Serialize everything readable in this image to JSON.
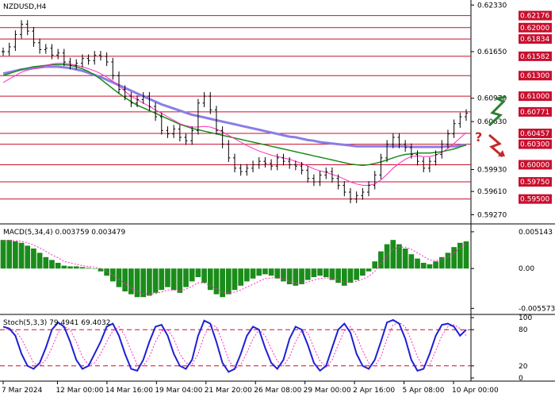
{
  "chart_data": [
    {
      "type": "line",
      "title": "NZDUSD,H4",
      "price_axis": {
        "ticks": [
          "0.62330",
          "0.61650",
          "0.60970",
          "0.60630",
          "0.59930",
          "0.59610",
          "0.59270"
        ],
        "ylim": [
          0.5916,
          0.6238
        ]
      },
      "levels": [
        {
          "label": "0.62176",
          "value": 0.62176
        },
        {
          "label": "0.62000",
          "value": 0.62
        },
        {
          "label": "0.61834",
          "value": 0.61834
        },
        {
          "label": "0.61582",
          "value": 0.61582
        },
        {
          "label": "0.61300",
          "value": 0.613
        },
        {
          "label": "0.61000",
          "value": 0.61
        },
        {
          "label": "0.60771",
          "value": 0.60771
        },
        {
          "label": "0.60457",
          "value": 0.60457
        },
        {
          "label": "0.60300",
          "value": 0.603
        },
        {
          "label": "0.60000",
          "value": 0.6
        },
        {
          "label": "0.59750",
          "value": 0.5975
        },
        {
          "label": "0.59500",
          "value": 0.595
        }
      ],
      "x_labels": [
        "7 Mar 2024",
        "12 Mar 00:00",
        "14 Mar 16:00",
        "19 Mar 04:00",
        "21 Mar 20:00",
        "26 Mar 08:00",
        "29 Mar 00:00",
        "2 Apr 16:00",
        "5 Apr 08:00",
        "10 Apr 00:00"
      ],
      "price_close": [
        0.6165,
        0.6172,
        0.619,
        0.6205,
        0.6195,
        0.6178,
        0.6168,
        0.617,
        0.616,
        0.6163,
        0.615,
        0.6145,
        0.6148,
        0.6155,
        0.6152,
        0.616,
        0.6158,
        0.615,
        0.613,
        0.611,
        0.61,
        0.609,
        0.6095,
        0.61,
        0.6085,
        0.607,
        0.605,
        0.6045,
        0.6052,
        0.604,
        0.6035,
        0.605,
        0.609,
        0.61,
        0.608,
        0.605,
        0.603,
        0.601,
        0.5995,
        0.599,
        0.5995,
        0.6,
        0.6005,
        0.6002,
        0.5998,
        0.601,
        0.6005,
        0.6,
        0.5998,
        0.5992,
        0.598,
        0.5975,
        0.5985,
        0.599,
        0.598,
        0.597,
        0.596,
        0.595,
        0.5955,
        0.596,
        0.597,
        0.5985,
        0.601,
        0.603,
        0.604,
        0.603,
        0.6025,
        0.6015,
        0.6005,
        0.5995,
        0.6005,
        0.6015,
        0.603,
        0.6045,
        0.606,
        0.607,
        0.6075
      ],
      "sma_fast": [
        0.612,
        0.6125,
        0.613,
        0.6135,
        0.6138,
        0.614,
        0.6142,
        0.6145,
        0.6147,
        0.6148,
        0.6148,
        0.6147,
        0.6145,
        0.6143,
        0.614,
        0.6137,
        0.6133,
        0.6128,
        0.6122,
        0.6115,
        0.6107,
        0.61,
        0.6095,
        0.609,
        0.6085,
        0.608,
        0.6075,
        0.607,
        0.6065,
        0.606,
        0.6057,
        0.6055,
        0.6055,
        0.6056,
        0.6055,
        0.6052,
        0.6048,
        0.6043,
        0.6038,
        0.6033,
        0.6028,
        0.6024,
        0.602,
        0.6017,
        0.6014,
        0.6012,
        0.601,
        0.6008,
        0.6005,
        0.6002,
        0.5998,
        0.5994,
        0.5991,
        0.5989,
        0.5986,
        0.5983,
        0.5979,
        0.5975,
        0.5972,
        0.597,
        0.597,
        0.5972,
        0.5978,
        0.5986,
        0.5995,
        0.6002,
        0.6008,
        0.6012,
        0.6013,
        0.6012,
        0.6012,
        0.6014,
        0.6018,
        0.6024,
        0.6031,
        0.6039,
        0.6047
      ],
      "sma_mid": [
        0.613,
        0.6133,
        0.6136,
        0.6139,
        0.6141,
        0.6143,
        0.6144,
        0.6145,
        0.6146,
        0.6146,
        0.6146,
        0.6145,
        0.6143,
        0.614,
        0.6136,
        0.6131,
        0.6125,
        0.6118,
        0.6111,
        0.6104,
        0.6098,
        0.6092,
        0.6087,
        0.6083,
        0.6079,
        0.6075,
        0.6071,
        0.6067,
        0.6063,
        0.6059,
        0.6056,
        0.6053,
        0.6051,
        0.6049,
        0.6047,
        0.6045,
        0.6043,
        0.6041,
        0.6039,
        0.6037,
        0.6035,
        0.6033,
        0.6031,
        0.6029,
        0.6027,
        0.6025,
        0.6023,
        0.6021,
        0.6019,
        0.6017,
        0.6015,
        0.6013,
        0.6011,
        0.6009,
        0.6007,
        0.6005,
        0.6003,
        0.6001,
        0.6,
        0.5999,
        0.6,
        0.6002,
        0.6004,
        0.6007,
        0.601,
        0.6013,
        0.6015,
        0.6016,
        0.6017,
        0.6017,
        0.6017,
        0.6018,
        0.6019,
        0.6021,
        0.6023,
        0.6026,
        0.6029
      ],
      "sma_slow": [
        0.6133,
        0.6135,
        0.6137,
        0.6139,
        0.614,
        0.6141,
        0.6142,
        0.6143,
        0.6143,
        0.6143,
        0.6142,
        0.6141,
        0.6139,
        0.6137,
        0.6134,
        0.6131,
        0.6128,
        0.6124,
        0.612,
        0.6116,
        0.6112,
        0.6108,
        0.6104,
        0.61,
        0.6096,
        0.6092,
        0.6088,
        0.6085,
        0.6082,
        0.6079,
        0.6076,
        0.6073,
        0.6071,
        0.6069,
        0.6067,
        0.6065,
        0.6063,
        0.6061,
        0.6059,
        0.6057,
        0.6055,
        0.6053,
        0.6051,
        0.6049,
        0.6047,
        0.6045,
        0.6043,
        0.6041,
        0.604,
        0.6038,
        0.6036,
        0.6035,
        0.6033,
        0.6032,
        0.6031,
        0.603,
        0.6029,
        0.6028,
        0.6027,
        0.6027,
        0.6027,
        0.6027,
        0.6027,
        0.6027,
        0.6027,
        0.6027,
        0.6027,
        0.6026,
        0.6026,
        0.6026,
        0.6026,
        0.6026,
        0.6026,
        0.6027,
        0.6027,
        0.6028,
        0.6029
      ]
    },
    {
      "type": "bar",
      "title": "MACD(5,34,4) 0.003759 0.003479",
      "ticks": [
        "0.005143",
        "0.00",
        "-0.005573"
      ],
      "ylim": [
        -0.0062,
        0.0058
      ],
      "values": [
        0.004,
        0.004,
        0.0038,
        0.0036,
        0.0032,
        0.0028,
        0.0022,
        0.0016,
        0.0012,
        0.0008,
        0.0004,
        0.0003,
        0.0003,
        0.0002,
        0.0001,
        0.0,
        -0.0004,
        -0.001,
        -0.0018,
        -0.0026,
        -0.0032,
        -0.0036,
        -0.004,
        -0.004,
        -0.0038,
        -0.0034,
        -0.003,
        -0.0026,
        -0.003,
        -0.0034,
        -0.0026,
        -0.0018,
        -0.0012,
        -0.002,
        -0.003,
        -0.0036,
        -0.004,
        -0.0036,
        -0.003,
        -0.0024,
        -0.0018,
        -0.0014,
        -0.001,
        -0.0008,
        -0.001,
        -0.0014,
        -0.0018,
        -0.0022,
        -0.0024,
        -0.0022,
        -0.0016,
        -0.0012,
        -0.001,
        -0.0012,
        -0.0016,
        -0.002,
        -0.0024,
        -0.002,
        -0.0016,
        -0.001,
        -0.0004,
        0.001,
        0.0024,
        0.0034,
        0.004,
        0.0034,
        0.0028,
        0.002,
        0.0014,
        0.0008,
        0.0006,
        0.001,
        0.0016,
        0.0022,
        0.003,
        0.0036,
        0.0038
      ],
      "signal": [
        0.0038,
        0.0039,
        0.0039,
        0.0038,
        0.0036,
        0.0033,
        0.0029,
        0.0024,
        0.0019,
        0.0015,
        0.001,
        0.0008,
        0.0006,
        0.0004,
        0.0003,
        0.0002,
        0.0,
        -0.0004,
        -0.0009,
        -0.0015,
        -0.0021,
        -0.0027,
        -0.0032,
        -0.0035,
        -0.0036,
        -0.0035,
        -0.0033,
        -0.003,
        -0.003,
        -0.0031,
        -0.0029,
        -0.0025,
        -0.002,
        -0.002,
        -0.0024,
        -0.0028,
        -0.0033,
        -0.0034,
        -0.0033,
        -0.003,
        -0.0026,
        -0.0022,
        -0.0018,
        -0.0014,
        -0.0013,
        -0.0013,
        -0.0015,
        -0.0018,
        -0.002,
        -0.0021,
        -0.0019,
        -0.0016,
        -0.0014,
        -0.0013,
        -0.0014,
        -0.0016,
        -0.0019,
        -0.0019,
        -0.0018,
        -0.0015,
        -0.0011,
        -0.0004,
        0.0007,
        0.0018,
        0.0027,
        0.003,
        0.003,
        0.0027,
        0.0022,
        0.0017,
        0.0012,
        0.0011,
        0.0013,
        0.0016,
        0.0022,
        0.0028,
        0.0035
      ]
    },
    {
      "type": "line",
      "title": "Stoch(5,3,3) 79.4941 69.4032",
      "ticks": [
        "100",
        "80",
        "20",
        "0"
      ],
      "ylim": [
        0,
        100
      ],
      "levels": [
        80,
        20
      ],
      "k": [
        85,
        82,
        70,
        40,
        20,
        15,
        25,
        50,
        80,
        92,
        85,
        60,
        30,
        15,
        20,
        40,
        60,
        85,
        90,
        70,
        40,
        15,
        12,
        30,
        60,
        85,
        88,
        70,
        40,
        20,
        15,
        30,
        70,
        95,
        90,
        60,
        25,
        10,
        15,
        40,
        70,
        85,
        80,
        50,
        25,
        15,
        30,
        65,
        85,
        80,
        55,
        25,
        12,
        20,
        50,
        80,
        90,
        75,
        40,
        20,
        15,
        30,
        60,
        92,
        96,
        90,
        65,
        30,
        12,
        15,
        40,
        70,
        88,
        90,
        85,
        70,
        80
      ],
      "d": [
        80,
        82,
        78,
        65,
        45,
        25,
        20,
        30,
        50,
        75,
        85,
        80,
        60,
        35,
        22,
        25,
        40,
        60,
        78,
        85,
        70,
        45,
        22,
        20,
        35,
        60,
        78,
        80,
        65,
        40,
        25,
        22,
        40,
        70,
        88,
        85,
        60,
        30,
        15,
        22,
        42,
        65,
        80,
        70,
        48,
        28,
        20,
        35,
        60,
        78,
        75,
        50,
        28,
        18,
        30,
        55,
        78,
        85,
        70,
        45,
        25,
        20,
        35,
        65,
        88,
        92,
        85,
        62,
        35,
        18,
        22,
        45,
        70,
        85,
        88,
        82,
        70
      ]
    }
  ],
  "price_pane_label": "NZDUSD,H4",
  "macd_pane_label": "MACD(5,34,4) 0.003759 0.003479",
  "stoch_pane_label": "Stoch(5,3,3) 79.4941 69.4032",
  "annotation_question": "?",
  "colors": {
    "level_line": "#c8102e",
    "level_label_bg": "#c8102e",
    "sma_fast": "#ff2dbb",
    "sma_mid": "#1a8c1a",
    "sma_slow": "#8a7ee6",
    "macd_bar": "#1a8c1a",
    "stoch_k": "#1f1fd6",
    "stoch_d": "#ff2dbb",
    "arrow_up": "#2e7d32",
    "arrow_down": "#c62828"
  },
  "icons": {
    "up_arrow": "zigzag-up-arrow-icon",
    "down_arrow": "zigzag-down-arrow-icon"
  }
}
